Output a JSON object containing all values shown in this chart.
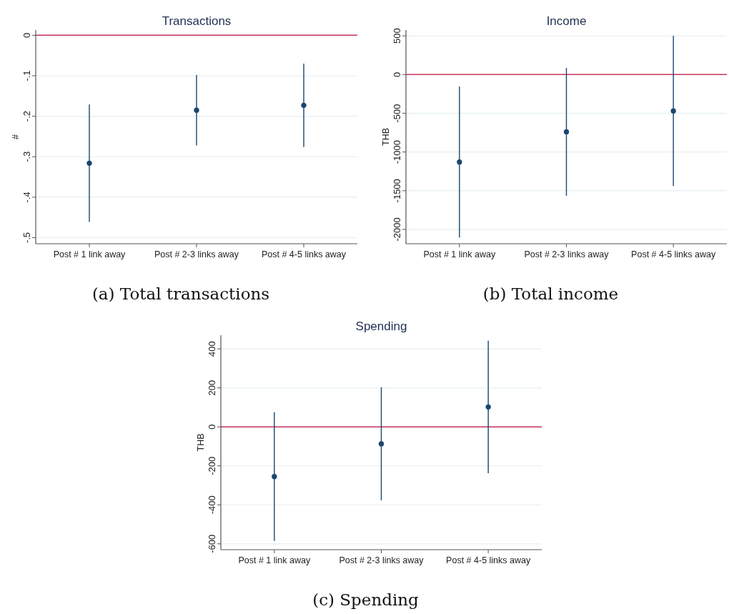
{
  "chart_data": [
    {
      "type": "scatter",
      "title": "Transactions",
      "ylabel": "#",
      "categories": [
        "Post # 1 link away",
        "Post # 2-3 links away",
        "Post # 4-5 links away"
      ],
      "values": [
        -0.316,
        -0.185,
        -0.173
      ],
      "errors": [
        0.145,
        0.087,
        0.103
      ],
      "color": "#1a476f",
      "ylim": [
        -0.515,
        0.013
      ],
      "yticks": [
        0,
        {
          "value": -0.1,
          "label": "-.1"
        },
        {
          "value": -0.2,
          "label": "-.2"
        },
        {
          "value": -0.3,
          "label": "-.3"
        },
        {
          "value": -0.4,
          "label": "-.4"
        },
        {
          "value": -0.5,
          "label": "-.5"
        }
      ],
      "grid": "y",
      "marker": "circle",
      "ref_lines": [
        {
          "axis": "y",
          "value": 0,
          "color": "#c8355a"
        }
      ],
      "annotations": [
        "(a) Total transactions"
      ]
    },
    {
      "type": "scatter",
      "title": "Income",
      "ylabel": "THB",
      "categories": [
        "Post # 1 link away",
        "Post # 2-3 links away",
        "Post # 4-5 links away"
      ],
      "values": [
        -1130,
        -740,
        -470
      ],
      "errors": [
        975,
        825,
        970
      ],
      "color": "#1a476f",
      "ylim": [
        -2185,
        575
      ],
      "yticks": [
        500,
        0,
        -500,
        -1000,
        -1500,
        -2000
      ],
      "grid": "y",
      "marker": "circle",
      "ref_lines": [
        {
          "axis": "y",
          "value": 0,
          "color": "#c8355a"
        }
      ],
      "annotations": [
        "(b) Total income"
      ]
    },
    {
      "type": "scatter",
      "title": "Spending",
      "ylabel": "THB",
      "categories": [
        "Post # 1 link away",
        "Post # 2-3 links away",
        "Post # 4-5 links away"
      ],
      "values": [
        -255,
        -87,
        102
      ],
      "errors": [
        330,
        290,
        340
      ],
      "color": "#1a476f",
      "ylim": [
        -630,
        470
      ],
      "yticks": [
        400,
        200,
        0,
        -200,
        -400,
        -600
      ],
      "grid": "y",
      "marker": "circle",
      "ref_lines": [
        {
          "axis": "y",
          "value": 0,
          "color": "#c8355a"
        }
      ],
      "annotations": [
        "(c) Spending"
      ]
    }
  ]
}
